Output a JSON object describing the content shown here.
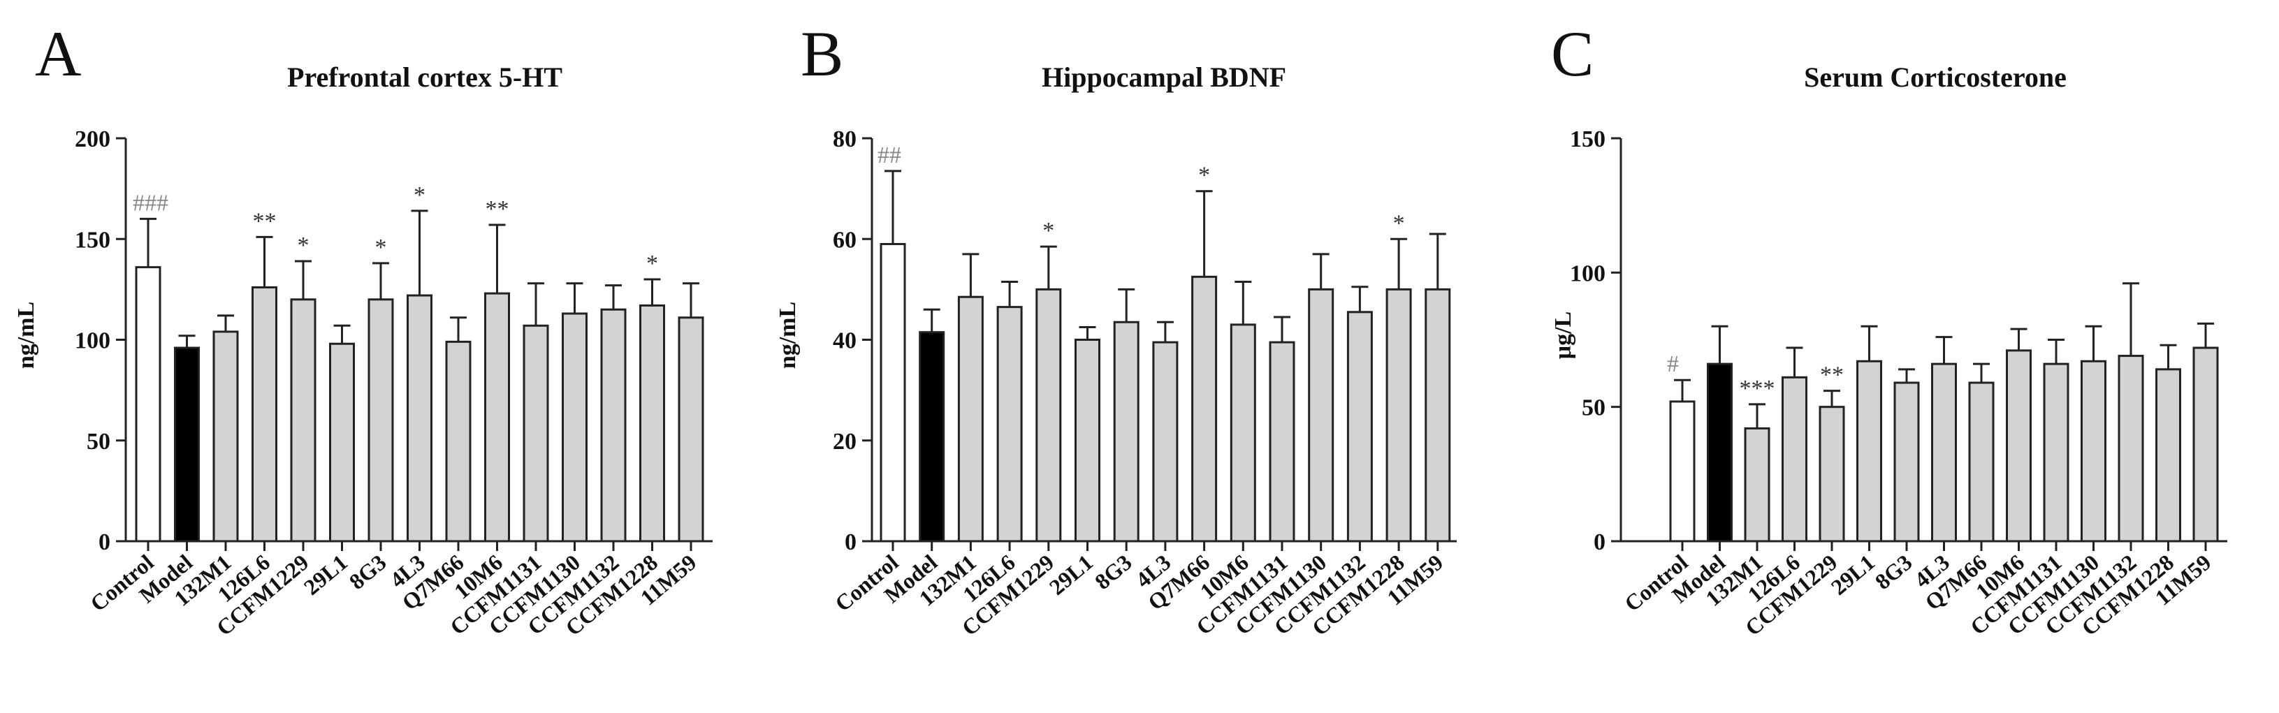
{
  "colors": {
    "control": "#ffffff",
    "model": "#000000",
    "treatment": "#d3d3d3",
    "stroke": "#222222"
  },
  "chart_data": [
    {
      "type": "bar",
      "panel": "A",
      "title": "Prefrontal cortex 5-HT",
      "ylabel": "ng/mL",
      "ylim": [
        0,
        200
      ],
      "yticks": [
        "0",
        "50",
        "100",
        "150",
        "200"
      ],
      "categories": [
        "Control",
        "Model",
        "132M1",
        "126L6",
        "CCFM1229",
        "29L1",
        "8G3",
        "4L3",
        "Q7M66",
        "10M6",
        "CCFM1131",
        "CCFM1130",
        "CCFM1132",
        "CCFM1228",
        "11M59"
      ],
      "values": [
        136,
        96,
        104,
        126,
        120,
        98,
        120,
        122,
        99,
        123,
        107,
        113,
        115,
        117,
        111
      ],
      "errors": [
        24,
        6,
        8,
        25,
        19,
        9,
        18,
        42,
        12,
        34,
        21,
        15,
        12,
        13,
        17
      ],
      "annotations": [
        "###",
        "",
        "",
        "**",
        "*",
        "",
        "*",
        "*",
        "",
        "**",
        "",
        "",
        "",
        "*",
        ""
      ]
    },
    {
      "type": "bar",
      "panel": "B",
      "title": "Hippocampal BDNF",
      "ylabel": "ng/mL",
      "ylim": [
        0,
        80
      ],
      "yticks": [
        "0",
        "20",
        "40",
        "60",
        "80"
      ],
      "categories": [
        "Control",
        "Model",
        "132M1",
        "126L6",
        "CCFM1229",
        "29L1",
        "8G3",
        "4L3",
        "Q7M66",
        "10M6",
        "CCFM1131",
        "CCFM1130",
        "CCFM1132",
        "CCFM1228",
        "11M59"
      ],
      "values": [
        59,
        41.5,
        48.5,
        46.5,
        50,
        40,
        43.5,
        39.5,
        52.5,
        43,
        39.5,
        50,
        45.5,
        50,
        50
      ],
      "errors": [
        14.5,
        4.5,
        8.5,
        5,
        8.5,
        2.5,
        6.5,
        4,
        17,
        8.5,
        5,
        7,
        5,
        10,
        11
      ],
      "annotations": [
        "##",
        "",
        "",
        "",
        "*",
        "",
        "",
        "",
        "*",
        "",
        "",
        "",
        "",
        "*",
        ""
      ]
    },
    {
      "type": "bar",
      "panel": "C",
      "title": "Serum Corticosterone",
      "ylabel": "μg/L",
      "ylim": [
        0,
        150
      ],
      "yticks": [
        "0",
        "50",
        "100",
        "150"
      ],
      "categories": [
        "Control",
        "Model",
        "132M1",
        "126L6",
        "CCFM1229",
        "29L1",
        "8G3",
        "4L3",
        "Q7M66",
        "10M6",
        "CCFM1131",
        "CCFM1130",
        "CCFM1132",
        "CCFM1228",
        "11M59"
      ],
      "values": [
        52,
        66,
        42,
        61,
        50,
        67,
        59,
        66,
        59,
        71,
        66,
        67,
        69,
        64,
        72
      ],
      "errors": [
        8,
        14,
        9,
        11,
        6,
        13,
        5,
        10,
        7,
        8,
        9,
        13,
        27,
        9,
        9
      ],
      "annotations": [
        "#",
        "",
        "***",
        "",
        "**",
        "",
        "",
        "",
        "",
        "",
        "",
        "",
        "",
        "",
        ""
      ]
    }
  ]
}
